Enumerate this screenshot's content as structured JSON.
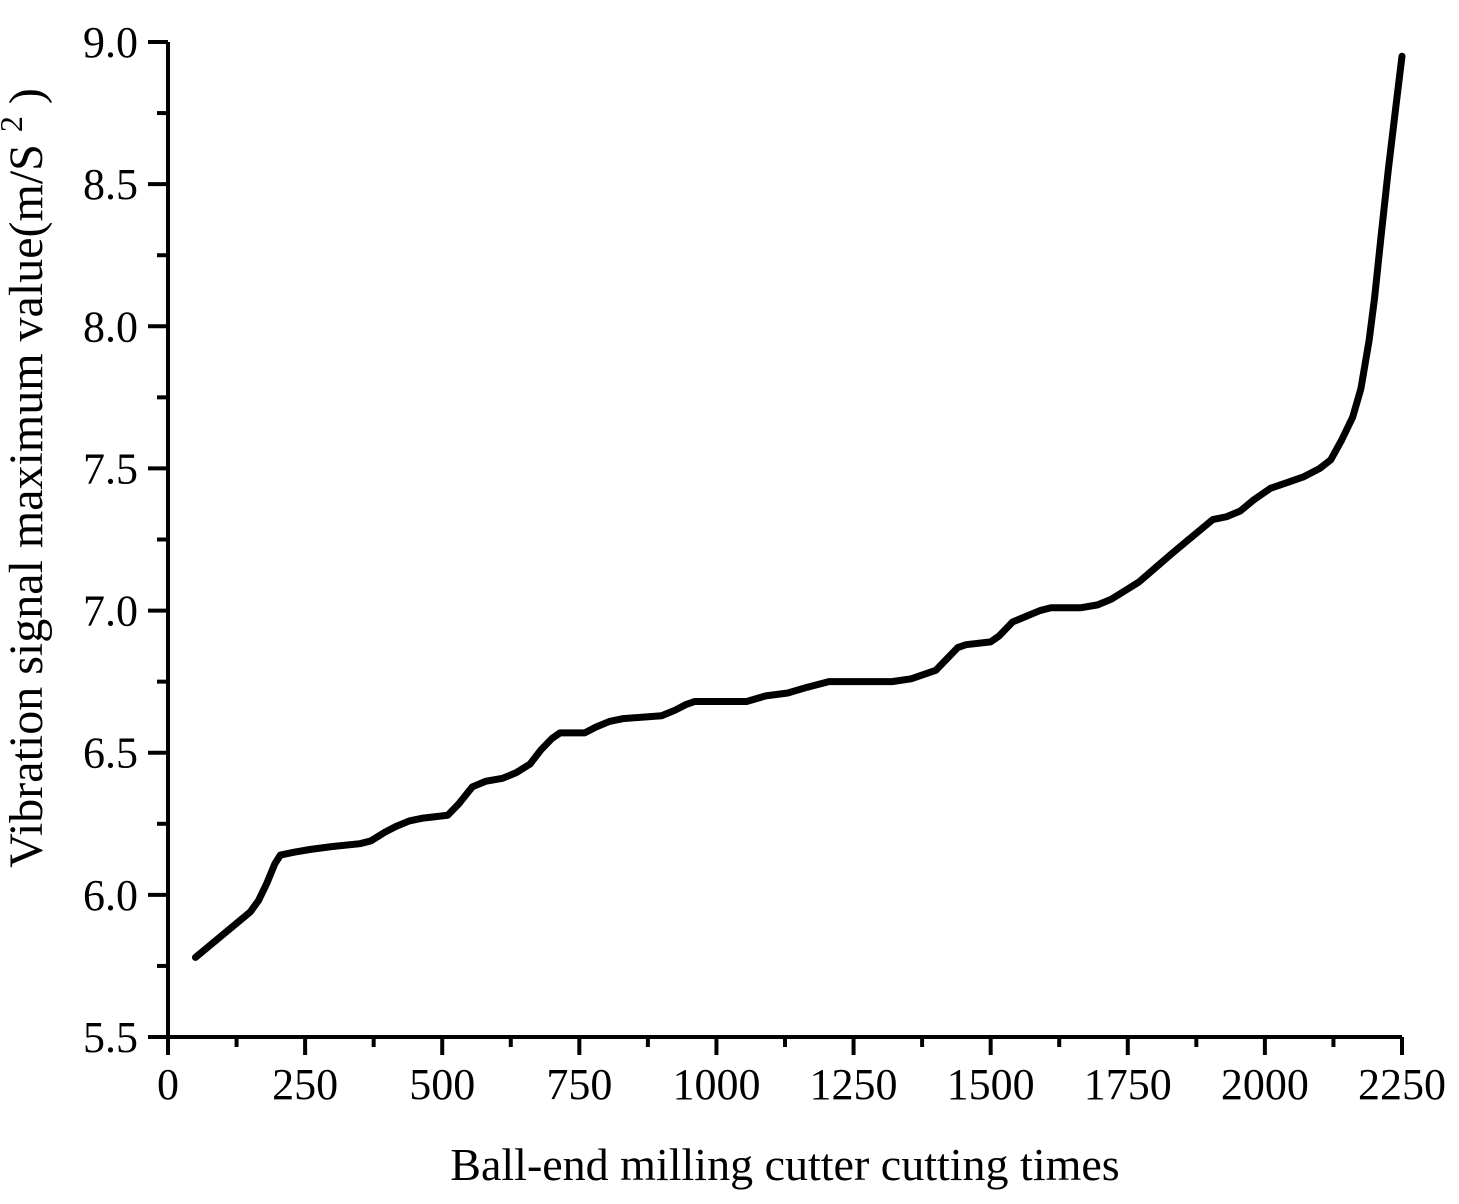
{
  "figure": {
    "background": "#ffffff",
    "axis_color": "#000000"
  },
  "chart_data": {
    "type": "line",
    "title": "",
    "xlabel": "Ball-end milling cutter cutting times",
    "ylabel": "Vibration signal maximum value(m/S²)",
    "ylabel_parts": [
      "Vibration signal maximum value(m/S",
      "2",
      ")"
    ],
    "xlim": [
      0,
      2250
    ],
    "ylim": [
      5.5,
      9.0
    ],
    "x_tick_labels": [
      "0",
      "250",
      "500",
      "750",
      "1000",
      "1250",
      "1500",
      "1750",
      "2000",
      "2250"
    ],
    "y_tick_labels": [
      "5.5",
      "6.0",
      "6.5",
      "7.0",
      "7.5",
      "8.0",
      "8.5",
      "9.0"
    ],
    "minor_tick_style": "midpoints-between-major-ticks",
    "grid": false,
    "legend": "none",
    "line_color": "#000000",
    "line_width": 7,
    "series": [
      {
        "name": "vibration signal maximum value",
        "points": [
          [
            50,
            5.78
          ],
          [
            75,
            5.82
          ],
          [
            100,
            5.86
          ],
          [
            125,
            5.9
          ],
          [
            150,
            5.94
          ],
          [
            165,
            5.98
          ],
          [
            180,
            6.04
          ],
          [
            195,
            6.11
          ],
          [
            205,
            6.14
          ],
          [
            230,
            6.15
          ],
          [
            260,
            6.16
          ],
          [
            300,
            6.17
          ],
          [
            350,
            6.18
          ],
          [
            370,
            6.19
          ],
          [
            395,
            6.22
          ],
          [
            415,
            6.24
          ],
          [
            440,
            6.26
          ],
          [
            465,
            6.27
          ],
          [
            510,
            6.28
          ],
          [
            530,
            6.32
          ],
          [
            555,
            6.38
          ],
          [
            580,
            6.4
          ],
          [
            610,
            6.41
          ],
          [
            635,
            6.43
          ],
          [
            660,
            6.46
          ],
          [
            680,
            6.51
          ],
          [
            700,
            6.55
          ],
          [
            715,
            6.57
          ],
          [
            760,
            6.57
          ],
          [
            780,
            6.59
          ],
          [
            805,
            6.61
          ],
          [
            830,
            6.62
          ],
          [
            900,
            6.63
          ],
          [
            925,
            6.65
          ],
          [
            945,
            6.67
          ],
          [
            960,
            6.68
          ],
          [
            1055,
            6.68
          ],
          [
            1090,
            6.7
          ],
          [
            1130,
            6.71
          ],
          [
            1165,
            6.73
          ],
          [
            1205,
            6.75
          ],
          [
            1320,
            6.75
          ],
          [
            1355,
            6.76
          ],
          [
            1400,
            6.79
          ],
          [
            1420,
            6.83
          ],
          [
            1440,
            6.87
          ],
          [
            1455,
            6.88
          ],
          [
            1500,
            6.89
          ],
          [
            1515,
            6.91
          ],
          [
            1540,
            6.96
          ],
          [
            1565,
            6.98
          ],
          [
            1590,
            7.0
          ],
          [
            1610,
            7.01
          ],
          [
            1665,
            7.01
          ],
          [
            1695,
            7.02
          ],
          [
            1720,
            7.04
          ],
          [
            1745,
            7.07
          ],
          [
            1770,
            7.1
          ],
          [
            1800,
            7.15
          ],
          [
            1830,
            7.2
          ],
          [
            1855,
            7.24
          ],
          [
            1880,
            7.28
          ],
          [
            1905,
            7.32
          ],
          [
            1930,
            7.33
          ],
          [
            1955,
            7.35
          ],
          [
            1980,
            7.39
          ],
          [
            2010,
            7.43
          ],
          [
            2040,
            7.45
          ],
          [
            2070,
            7.47
          ],
          [
            2100,
            7.5
          ],
          [
            2120,
            7.53
          ],
          [
            2140,
            7.6
          ],
          [
            2160,
            7.68
          ],
          [
            2175,
            7.78
          ],
          [
            2190,
            7.95
          ],
          [
            2200,
            8.1
          ],
          [
            2212,
            8.32
          ],
          [
            2225,
            8.55
          ],
          [
            2238,
            8.76
          ],
          [
            2250,
            8.95
          ]
        ]
      }
    ]
  }
}
